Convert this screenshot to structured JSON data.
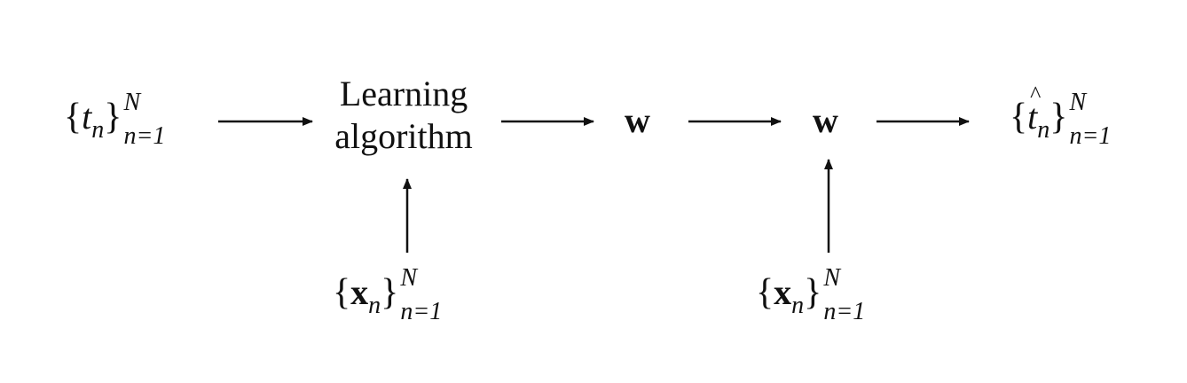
{
  "nodes": {
    "targets": {
      "symbol": "t",
      "index": "n",
      "upper": "N",
      "lower": "n=1"
    },
    "learning": {
      "line1": "Learning",
      "line2": "algorithm"
    },
    "w_learned": {
      "symbol": "w"
    },
    "w_applied": {
      "symbol": "w"
    },
    "predictions": {
      "symbol": "t",
      "index": "n",
      "upper": "N",
      "lower": "n=1"
    },
    "inputs_train": {
      "symbol": "x",
      "index": "n",
      "upper": "N",
      "lower": "n=1"
    },
    "inputs_test": {
      "symbol": "x",
      "index": "n",
      "upper": "N",
      "lower": "n=1"
    }
  },
  "colors": {
    "ink": "#111111",
    "background": "#ffffff"
  }
}
